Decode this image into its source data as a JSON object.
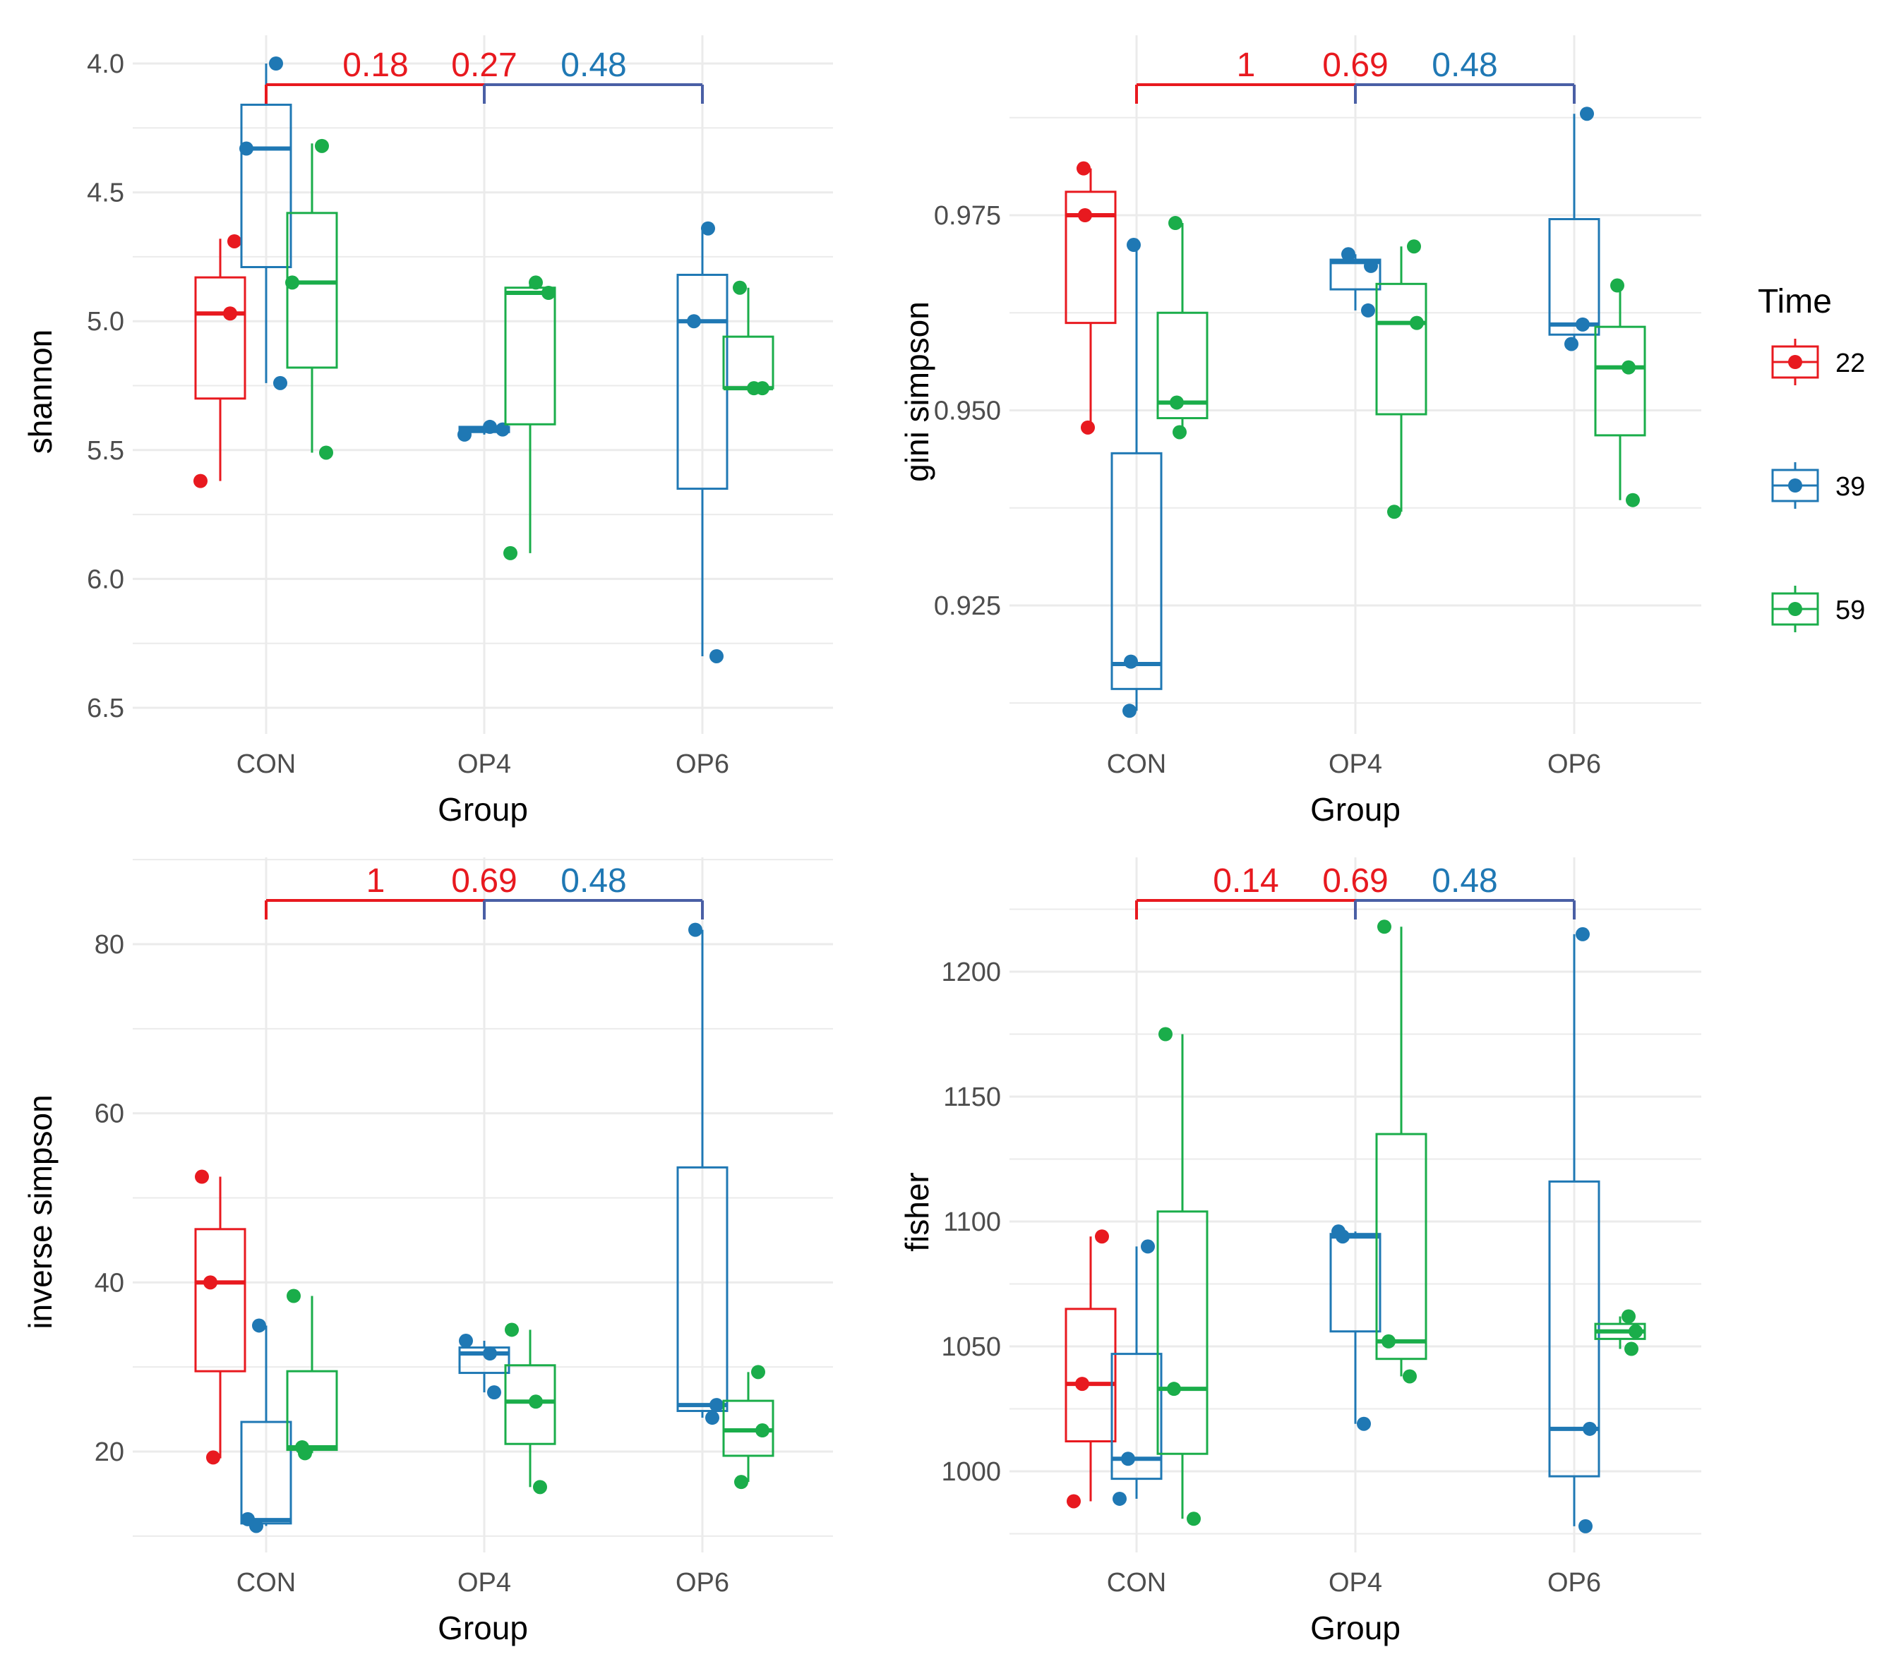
{
  "colors": {
    "22": "#e8191f",
    "39": "#1f78b4",
    "59": "#1aad4a",
    "grid": "#ebebeb",
    "bracket_mid": "#4a5fa5"
  },
  "legend": {
    "title": "Time",
    "entries": [
      "22",
      "39",
      "59"
    ]
  },
  "chart_data": [
    {
      "type": "boxplot",
      "name": "shannon",
      "xlabel": "Group",
      "ylabel": "shannon",
      "categories": [
        "CON",
        "OP4",
        "OP6"
      ],
      "ylim": [
        3.95,
        6.55
      ],
      "yticks": [
        4.0,
        4.5,
        5.0,
        5.5,
        6.0,
        6.5
      ],
      "ytick_labels": [
        "4.0",
        "4.5",
        "5.0",
        "5.5",
        "6.0",
        "6.5"
      ],
      "pvalues": {
        "first": "0.18",
        "second": "0.27",
        "third": "0.48"
      },
      "series": [
        {
          "name": "22",
          "boxes": [
            {
              "group": "CON",
              "min": 4.68,
              "q1": 4.83,
              "median": 4.97,
              "q3": 5.3,
              "max": 5.62,
              "points": [
                5.62,
                4.97,
                4.69
              ]
            }
          ]
        },
        {
          "name": "39",
          "boxes": [
            {
              "group": "CON",
              "min": 4.0,
              "q1": 4.16,
              "median": 4.33,
              "q3": 4.79,
              "max": 5.24,
              "points": [
                4.33,
                4.0,
                5.24
              ]
            },
            {
              "group": "OP4",
              "min": 5.41,
              "q1": 5.41,
              "median": 5.42,
              "q3": 5.43,
              "max": 5.44,
              "points": [
                5.41,
                5.42,
                5.44
              ]
            },
            {
              "group": "OP6",
              "min": 4.64,
              "q1": 4.82,
              "median": 5.0,
              "q3": 5.65,
              "max": 6.3,
              "points": [
                6.3,
                5.0,
                4.64
              ]
            }
          ]
        },
        {
          "name": "59",
          "boxes": [
            {
              "group": "CON",
              "min": 4.31,
              "q1": 4.58,
              "median": 4.85,
              "q3": 5.18,
              "max": 5.51,
              "points": [
                4.85,
                4.32,
                5.51
              ]
            },
            {
              "group": "OP4",
              "min": 4.86,
              "q1": 4.87,
              "median": 4.89,
              "q3": 5.4,
              "max": 5.9,
              "points": [
                4.85,
                4.89,
                5.9
              ]
            },
            {
              "group": "OP6",
              "min": 4.87,
              "q1": 5.06,
              "median": 5.26,
              "q3": 5.26,
              "max": 5.26,
              "points": [
                5.26,
                4.87,
                5.26
              ]
            }
          ]
        }
      ]
    },
    {
      "type": "boxplot",
      "name": "gini_simpson",
      "xlabel": "Group",
      "ylabel": "gini simpson",
      "categories": [
        "CON",
        "OP4",
        "OP6"
      ],
      "ylim": [
        0.9115,
        0.9915
      ],
      "yticks": [
        0.925,
        0.95,
        0.975
      ],
      "ytick_labels": [
        "0.925",
        "0.950",
        "0.975"
      ],
      "pvalues": {
        "first": "1",
        "second": "0.69",
        "third": "0.48"
      },
      "series": [
        {
          "name": "22",
          "boxes": [
            {
              "group": "CON",
              "min": 0.9475,
              "q1": 0.9612,
              "median": 0.975,
              "q3": 0.978,
              "max": 0.981,
              "points": [
                0.981,
                0.975,
                0.9478
              ]
            }
          ]
        },
        {
          "name": "39",
          "boxes": [
            {
              "group": "CON",
              "min": 0.9115,
              "q1": 0.9143,
              "median": 0.9175,
              "q3": 0.9445,
              "max": 0.9712,
              "points": [
                0.9115,
                0.9178,
                0.9712
              ]
            },
            {
              "group": "OP4",
              "min": 0.9628,
              "q1": 0.9655,
              "median": 0.969,
              "q3": 0.9693,
              "max": 0.97,
              "points": [
                0.9628,
                0.9685,
                0.97
              ]
            },
            {
              "group": "OP6",
              "min": 0.9585,
              "q1": 0.9597,
              "median": 0.961,
              "q3": 0.9745,
              "max": 0.988,
              "points": [
                0.9585,
                0.961,
                0.988
              ]
            }
          ]
        },
        {
          "name": "59",
          "boxes": [
            {
              "group": "CON",
              "min": 0.947,
              "q1": 0.949,
              "median": 0.951,
              "q3": 0.9625,
              "max": 0.974,
              "points": [
                0.974,
                0.951,
                0.9472
              ]
            },
            {
              "group": "OP4",
              "min": 0.937,
              "q1": 0.9495,
              "median": 0.9612,
              "q3": 0.9662,
              "max": 0.971,
              "points": [
                0.971,
                0.9612,
                0.937
              ]
            },
            {
              "group": "OP6",
              "min": 0.9385,
              "q1": 0.9468,
              "median": 0.9555,
              "q3": 0.9607,
              "max": 0.966,
              "points": [
                0.966,
                0.9555,
                0.9385
              ]
            }
          ]
        }
      ]
    },
    {
      "type": "boxplot",
      "name": "inverse_simpson",
      "xlabel": "Group",
      "ylabel": "inverse simpson",
      "categories": [
        "CON",
        "OP4",
        "OP6"
      ],
      "ylim": [
        10,
        85
      ],
      "yticks": [
        20,
        40,
        60,
        80
      ],
      "ytick_labels": [
        "20",
        "40",
        "60",
        "80"
      ],
      "pvalues": {
        "first": "1",
        "second": "0.69",
        "third": "0.48"
      },
      "series": [
        {
          "name": "22",
          "boxes": [
            {
              "group": "CON",
              "min": 19.2,
              "q1": 29.5,
              "median": 40.0,
              "q3": 46.3,
              "max": 52.5,
              "points": [
                52.5,
                40.0,
                19.3
              ]
            }
          ]
        },
        {
          "name": "39",
          "boxes": [
            {
              "group": "CON",
              "min": 11.2,
              "q1": 11.5,
              "median": 11.9,
              "q3": 23.5,
              "max": 34.9,
              "points": [
                12.0,
                11.2,
                34.9
              ]
            },
            {
              "group": "OP4",
              "min": 27.0,
              "q1": 29.3,
              "median": 31.6,
              "q3": 32.3,
              "max": 33.1,
              "points": [
                27.0,
                31.6,
                33.1
              ]
            },
            {
              "group": "OP6",
              "min": 24.0,
              "q1": 24.8,
              "median": 25.5,
              "q3": 53.6,
              "max": 81.7,
              "points": [
                81.7,
                25.5,
                24.0
              ]
            }
          ]
        },
        {
          "name": "59",
          "boxes": [
            {
              "group": "CON",
              "min": 19.8,
              "q1": 20.2,
              "median": 20.5,
              "q3": 29.5,
              "max": 38.4,
              "points": [
                38.4,
                20.5,
                19.8
              ]
            },
            {
              "group": "OP4",
              "min": 15.8,
              "q1": 20.9,
              "median": 25.9,
              "q3": 30.2,
              "max": 34.4,
              "points": [
                15.8,
                25.9,
                34.4
              ]
            },
            {
              "group": "OP6",
              "min": 16.4,
              "q1": 19.5,
              "median": 22.5,
              "q3": 26.0,
              "max": 29.4,
              "points": [
                16.4,
                22.5,
                29.4
              ]
            }
          ]
        }
      ]
    },
    {
      "type": "boxplot",
      "name": "fisher",
      "xlabel": "Group",
      "ylabel": "fisher",
      "categories": [
        "CON",
        "OP4",
        "OP6"
      ],
      "ylim": [
        975,
        1222
      ],
      "yticks": [
        1000,
        1050,
        1100,
        1150,
        1200
      ],
      "ytick_labels": [
        "1000",
        "1050",
        "1100",
        "1150",
        "1200"
      ],
      "pvalues": {
        "first": "0.14",
        "second": "0.69",
        "third": "0.48"
      },
      "series": [
        {
          "name": "22",
          "boxes": [
            {
              "group": "CON",
              "min": 988,
              "q1": 1012,
              "median": 1035,
              "q3": 1065,
              "max": 1094,
              "points": [
                988,
                1035,
                1094
              ]
            }
          ]
        },
        {
          "name": "39",
          "boxes": [
            {
              "group": "CON",
              "min": 989,
              "q1": 997,
              "median": 1005,
              "q3": 1047,
              "max": 1090,
              "points": [
                989,
                1005,
                1090
              ]
            },
            {
              "group": "OP4",
              "min": 1019,
              "q1": 1056,
              "median": 1094,
              "q3": 1095,
              "max": 1096,
              "points": [
                1019,
                1094,
                1096
              ]
            },
            {
              "group": "OP6",
              "min": 978,
              "q1": 998,
              "median": 1017,
              "q3": 1116,
              "max": 1215,
              "points": [
                978,
                1017,
                1215
              ]
            }
          ]
        },
        {
          "name": "59",
          "boxes": [
            {
              "group": "CON",
              "min": 981,
              "q1": 1007,
              "median": 1033,
              "q3": 1104,
              "max": 1175,
              "points": [
                1175,
                1033,
                981
              ]
            },
            {
              "group": "OP4",
              "min": 1038,
              "q1": 1045,
              "median": 1052,
              "q3": 1135,
              "max": 1218,
              "points": [
                1038,
                1052,
                1218
              ]
            },
            {
              "group": "OP6",
              "min": 1049,
              "q1": 1053,
              "median": 1056,
              "q3": 1059,
              "max": 1062,
              "points": [
                1049,
                1056,
                1062
              ]
            }
          ]
        }
      ]
    }
  ]
}
